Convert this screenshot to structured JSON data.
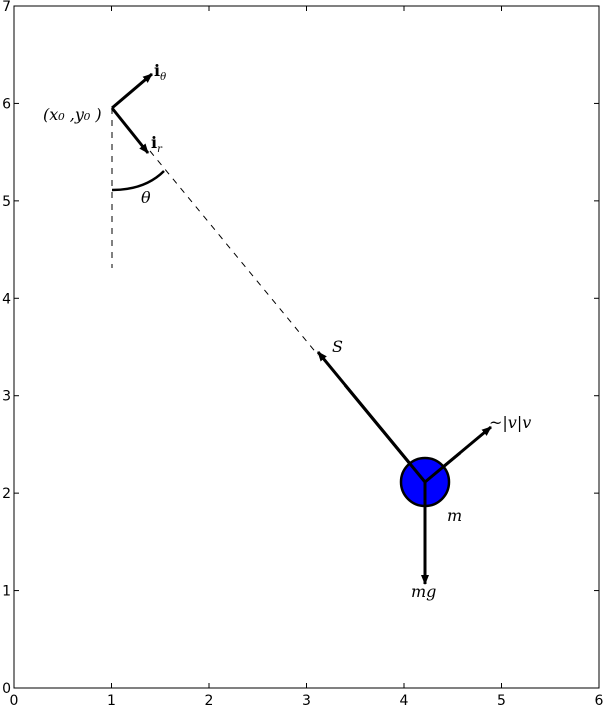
{
  "axes": {
    "x_ticks": [
      "0",
      "1",
      "2",
      "3",
      "4",
      "5",
      "6"
    ],
    "y_ticks": [
      "0",
      "1",
      "2",
      "3",
      "4",
      "5",
      "6",
      "7"
    ],
    "xlim": [
      0,
      6
    ],
    "ylim": [
      0,
      7
    ]
  },
  "labels": {
    "i_theta": {
      "main": "i",
      "sub": "θ"
    },
    "i_r": {
      "main": "i",
      "sub": "r"
    },
    "pivot": "(x₀ ,y₀ )",
    "theta": "θ",
    "tension": "S",
    "drag": "~|v|v",
    "mass": "m",
    "gravity": "mg"
  },
  "colors": {
    "mass_fill": "#0000ff",
    "ink": "#000000"
  }
}
